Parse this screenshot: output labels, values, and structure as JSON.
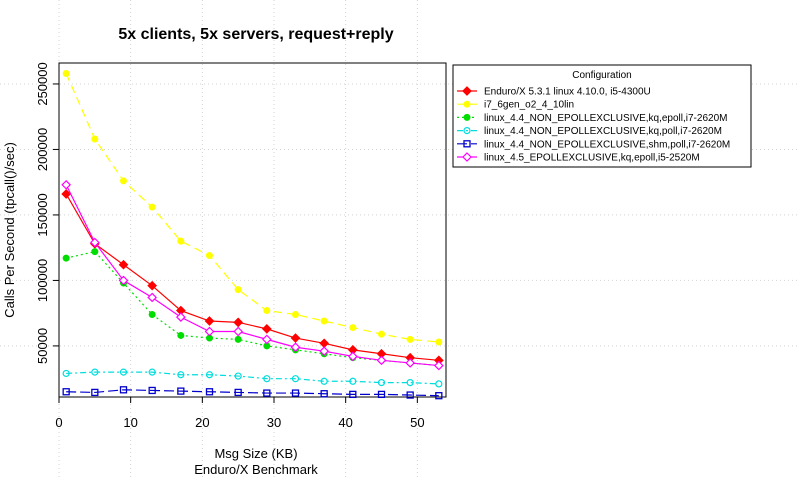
{
  "chart_data": {
    "type": "line",
    "title": "5x clients, 5x servers, request+reply",
    "xlabel": "Msg Size (KB)",
    "subtitle": "Enduro/X Benchmark",
    "ylabel": "Calls Per Second (tpcall()/sec)",
    "xlim": [
      0,
      54
    ],
    "ylim": [
      11000,
      266000
    ],
    "x_ticks": [
      0,
      10,
      20,
      30,
      40,
      50
    ],
    "y_ticks": [
      50000,
      100000,
      150000,
      200000,
      250000
    ],
    "grid": true,
    "legend_title": "Configuration",
    "legend_position": "top-right",
    "x": [
      1,
      5,
      9,
      13,
      17,
      21,
      25,
      29,
      33,
      37,
      41,
      45,
      49,
      53
    ],
    "series": [
      {
        "name": "Enduro/X 5.3.1 linux 4.10.0, i5-4300U",
        "color": "#ff0000",
        "marker": "diamond",
        "dash": "",
        "values": [
          166000,
          128000,
          112000,
          96000,
          77000,
          69000,
          68000,
          63000,
          56000,
          52000,
          47000,
          44000,
          41000,
          39000
        ]
      },
      {
        "name": "i7_6gen_o2_4_10lin",
        "color": "#ffff00",
        "marker": "circle",
        "dash": "8,5",
        "values": [
          258000,
          208000,
          176000,
          156000,
          130000,
          119000,
          93000,
          77000,
          74000,
          69000,
          64000,
          59000,
          55000,
          53000
        ]
      },
      {
        "name": "linux_4.4_NON_EPOLLEXCLUSIVE,kq,epoll,i7-2620M",
        "color": "#00dd00",
        "marker": "circle",
        "dash": "2,3",
        "values": [
          117000,
          122000,
          98000,
          74000,
          58000,
          56000,
          55000,
          50000,
          47000,
          44000,
          41000,
          39000,
          37000,
          35000
        ]
      },
      {
        "name": "linux_4.4_NON_EPOLLEXCLUSIVE,kq,poll,i7-2620M",
        "color": "#00dddd",
        "marker": "circle-open",
        "dash": "6,3,2,3",
        "values": [
          29000,
          30000,
          30000,
          30000,
          28000,
          28000,
          27000,
          25000,
          25000,
          23000,
          23000,
          22000,
          22000,
          21000
        ]
      },
      {
        "name": "linux_4.4_NON_EPOLLEXCLUSIVE,shm,poll,i7-2620M",
        "color": "#0000cc",
        "marker": "square-open",
        "dash": "10,4",
        "values": [
          15000,
          14500,
          16500,
          16000,
          15500,
          15000,
          14500,
          14000,
          14000,
          13500,
          13000,
          13000,
          12500,
          12000
        ]
      },
      {
        "name": "linux_4.5_EPOLLEXCLUSIVE,kq,epoll,i5-2520M",
        "color": "#ff00ff",
        "marker": "diamond-open",
        "dash": "",
        "values": [
          173000,
          129000,
          100000,
          87000,
          72000,
          61000,
          61000,
          55000,
          49000,
          46000,
          42000,
          39000,
          37000,
          35000
        ]
      }
    ]
  }
}
